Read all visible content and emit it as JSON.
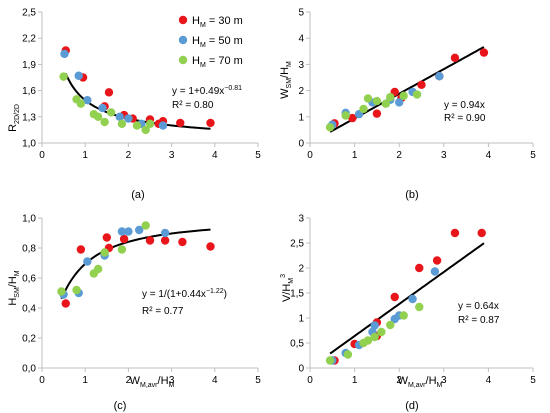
{
  "colors": {
    "H30": "#e8161b",
    "H50": "#5b9bd5",
    "H70": "#92d050",
    "fit": "#000000",
    "axis": "#bfbfbf"
  },
  "legend": {
    "items": [
      {
        "key": "H30",
        "label": "H_M = 30 m"
      },
      {
        "key": "H50",
        "label": "H_M = 50 m"
      },
      {
        "key": "H70",
        "label": "H_M = 70 m"
      }
    ]
  },
  "chart_data": [
    {
      "panel": "(a)",
      "type": "scatter",
      "ylabel": "R_2D/2D",
      "xlim": [
        0,
        5
      ],
      "ylim": [
        1.0,
        2.5
      ],
      "xticks": [
        "0",
        "1",
        "2",
        "3",
        "4",
        "5"
      ],
      "yticks": [
        "1,0",
        "1,3",
        "1,6",
        "1,9",
        "2,2",
        "2,5"
      ],
      "xtick_values": [
        0,
        1,
        2,
        3,
        4,
        5
      ],
      "ytick_values": [
        1.0,
        1.3,
        1.6,
        1.9,
        2.2,
        2.5
      ],
      "series": [
        {
          "key": "H30",
          "points": [
            [
              0.55,
              2.06
            ],
            [
              0.95,
              1.75
            ],
            [
              1.45,
              1.42
            ],
            [
              1.55,
              1.58
            ],
            [
              1.9,
              1.32
            ],
            [
              2.1,
              1.28
            ],
            [
              2.5,
              1.27
            ],
            [
              2.7,
              1.22
            ],
            [
              2.8,
              1.25
            ],
            [
              3.2,
              1.23
            ],
            [
              3.9,
              1.23
            ]
          ]
        },
        {
          "key": "H50",
          "points": [
            [
              0.52,
              2.02
            ],
            [
              0.85,
              1.77
            ],
            [
              1.05,
              1.49
            ],
            [
              1.4,
              1.4
            ],
            [
              1.8,
              1.3
            ],
            [
              2.0,
              1.28
            ],
            [
              2.3,
              1.22
            ],
            [
              2.8,
              1.2
            ]
          ]
        },
        {
          "key": "H70",
          "points": [
            [
              0.5,
              1.76
            ],
            [
              0.8,
              1.5
            ],
            [
              0.9,
              1.45
            ],
            [
              1.2,
              1.33
            ],
            [
              1.3,
              1.3
            ],
            [
              1.45,
              1.24
            ],
            [
              1.6,
              1.35
            ],
            [
              1.85,
              1.22
            ],
            [
              2.2,
              1.2
            ],
            [
              2.4,
              1.15
            ],
            [
              2.5,
              1.22
            ]
          ]
        }
      ],
      "fit": {
        "label": "y = 1+0.49x^-0.81",
        "r2": "R² = 0.80",
        "kind": "power_offset",
        "a": 1,
        "b": 0.49,
        "c": -0.81,
        "domain": [
          0.55,
          3.9
        ]
      }
    },
    {
      "panel": "(b)",
      "type": "scatter",
      "ylabel": "W_SM/H_M",
      "xlim": [
        0,
        5
      ],
      "ylim": [
        0,
        5
      ],
      "xticks": [
        "0",
        "1",
        "2",
        "3",
        "4",
        "5"
      ],
      "yticks": [
        "0",
        "1",
        "2",
        "3",
        "4",
        "5"
      ],
      "xtick_values": [
        0,
        1,
        2,
        3,
        4,
        5
      ],
      "ytick_values": [
        0,
        1,
        2,
        3,
        4,
        5
      ],
      "series": [
        {
          "key": "H30",
          "points": [
            [
              0.55,
              0.75
            ],
            [
              0.95,
              0.95
            ],
            [
              1.5,
              1.12
            ],
            [
              1.9,
              1.95
            ],
            [
              2.05,
              1.72
            ],
            [
              2.5,
              2.22
            ],
            [
              2.9,
              2.55
            ],
            [
              3.25,
              3.25
            ],
            [
              3.9,
              3.45
            ]
          ]
        },
        {
          "key": "H50",
          "points": [
            [
              0.5,
              0.7
            ],
            [
              0.8,
              1.15
            ],
            [
              1.1,
              1.1
            ],
            [
              1.4,
              1.55
            ],
            [
              1.8,
              1.65
            ],
            [
              2.0,
              1.55
            ],
            [
              2.3,
              1.95
            ],
            [
              2.9,
              2.55
            ]
          ]
        },
        {
          "key": "H70",
          "points": [
            [
              0.45,
              0.6
            ],
            [
              0.8,
              1.05
            ],
            [
              1.2,
              1.3
            ],
            [
              1.3,
              1.7
            ],
            [
              1.5,
              1.6
            ],
            [
              1.7,
              1.5
            ],
            [
              1.8,
              1.75
            ],
            [
              2.1,
              1.8
            ],
            [
              2.4,
              1.85
            ]
          ]
        }
      ],
      "fit": {
        "label": "y = 0.94x",
        "r2": "R² = 0.90",
        "kind": "linear",
        "m": 0.94,
        "domain": [
          0.45,
          3.9
        ]
      }
    },
    {
      "panel": "(c)",
      "type": "scatter",
      "xlabel": "W_M,avr/H_M",
      "ylabel": "H_SM/H_M",
      "xlim": [
        0,
        5
      ],
      "ylim": [
        0,
        1.0
      ],
      "xticks": [
        "0",
        "1",
        "2",
        "3",
        "4",
        "5"
      ],
      "yticks": [
        "0,0",
        "0,2",
        "0,4",
        "0,6",
        "0,8",
        "1,0"
      ],
      "xtick_values": [
        0,
        1,
        2,
        3,
        4,
        5
      ],
      "ytick_values": [
        0,
        0.2,
        0.4,
        0.6,
        0.8,
        1.0
      ],
      "series": [
        {
          "key": "H30",
          "points": [
            [
              0.55,
              0.43
            ],
            [
              0.9,
              0.79
            ],
            [
              1.5,
              0.87
            ],
            [
              1.55,
              0.8
            ],
            [
              1.9,
              0.86
            ],
            [
              2.5,
              0.85
            ],
            [
              2.85,
              0.85
            ],
            [
              3.25,
              0.84
            ],
            [
              3.9,
              0.81
            ]
          ]
        },
        {
          "key": "H50",
          "points": [
            [
              0.5,
              0.49
            ],
            [
              0.85,
              0.5
            ],
            [
              1.05,
              0.71
            ],
            [
              1.45,
              0.75
            ],
            [
              1.85,
              0.91
            ],
            [
              2.0,
              0.91
            ],
            [
              2.25,
              0.92
            ],
            [
              2.85,
              0.9
            ]
          ]
        },
        {
          "key": "H70",
          "points": [
            [
              0.45,
              0.51
            ],
            [
              0.8,
              0.52
            ],
            [
              1.2,
              0.63
            ],
            [
              1.3,
              0.66
            ],
            [
              1.45,
              0.77
            ],
            [
              1.85,
              0.79
            ],
            [
              2.4,
              0.95
            ]
          ]
        }
      ],
      "fit": {
        "label": "y = 1/(1+0.44x^-1.22)",
        "r2": "R² = 0.77",
        "kind": "logistic_power",
        "b": 0.44,
        "c": -1.22,
        "domain": [
          0.45,
          3.9
        ]
      }
    },
    {
      "panel": "(d)",
      "type": "scatter",
      "xlabel": "W_M,avr/H_M",
      "ylabel": "V/H_M^3",
      "xlim": [
        0,
        5
      ],
      "ylim": [
        0,
        3
      ],
      "xticks": [
        "0",
        "1",
        "2",
        "3",
        "4",
        "5"
      ],
      "yticks": [
        "0",
        "0,5",
        "1",
        "1,5",
        "2",
        "2,5",
        "3"
      ],
      "xtick_values": [
        0,
        1,
        2,
        3,
        4,
        5
      ],
      "ytick_values": [
        0,
        0.5,
        1,
        1.5,
        2,
        2.5,
        3
      ],
      "series": [
        {
          "key": "H30",
          "points": [
            [
              0.55,
              0.15
            ],
            [
              1.0,
              0.48
            ],
            [
              1.5,
              0.64
            ],
            [
              1.5,
              0.91
            ],
            [
              1.9,
              1.42
            ],
            [
              2.45,
              2.0
            ],
            [
              2.85,
              2.15
            ],
            [
              3.25,
              2.7
            ],
            [
              3.85,
              2.7
            ]
          ]
        },
        {
          "key": "H50",
          "points": [
            [
              0.5,
              0.15
            ],
            [
              0.8,
              0.3
            ],
            [
              1.1,
              0.46
            ],
            [
              1.4,
              0.72
            ],
            [
              1.45,
              0.85
            ],
            [
              1.9,
              0.98
            ],
            [
              2.0,
              1.05
            ],
            [
              2.3,
              1.38
            ],
            [
              2.8,
              1.93
            ]
          ]
        },
        {
          "key": "H70",
          "points": [
            [
              0.45,
              0.15
            ],
            [
              0.85,
              0.27
            ],
            [
              1.2,
              0.5
            ],
            [
              1.3,
              0.55
            ],
            [
              1.45,
              0.62
            ],
            [
              1.6,
              0.72
            ],
            [
              1.8,
              0.86
            ],
            [
              2.1,
              1.05
            ],
            [
              2.45,
              1.22
            ]
          ]
        }
      ],
      "fit": {
        "label": "y = 0.64x",
        "r2": "R² = 0.87",
        "kind": "linear",
        "m": 0.64,
        "domain": [
          0.45,
          3.9
        ]
      }
    }
  ]
}
